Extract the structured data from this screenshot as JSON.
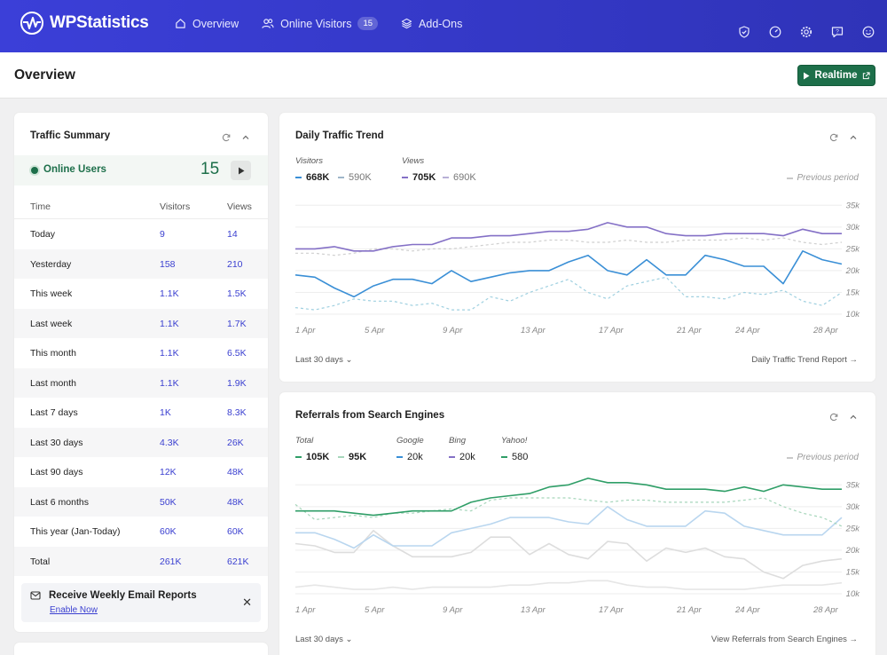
{
  "app": {
    "brand": "WPStatistics",
    "nav": [
      {
        "label": "Overview",
        "icon": "home-icon"
      },
      {
        "label": "Online Visitors",
        "icon": "users-icon",
        "badge": "15"
      },
      {
        "label": "Add-Ons",
        "icon": "layers-icon"
      }
    ],
    "top_icons": [
      "shield-check-icon",
      "gauge-icon",
      "gear-icon",
      "help-chat-icon",
      "smiley-icon"
    ]
  },
  "page": {
    "title": "Overview",
    "realtime_label": "Realtime"
  },
  "traffic_summary": {
    "title": "Traffic Summary",
    "online_label": "Online Users",
    "online_count": "15",
    "headers": {
      "time": "Time",
      "visitors": "Visitors",
      "views": "Views"
    },
    "rows": [
      {
        "label": "Today",
        "visitors": "9",
        "views": "14"
      },
      {
        "label": "Yesterday",
        "visitors": "158",
        "views": "210"
      },
      {
        "label": "This week",
        "visitors": "1.1K",
        "views": "1.5K"
      },
      {
        "label": "Last week",
        "visitors": "1.1K",
        "views": "1.7K"
      },
      {
        "label": "This month",
        "visitors": "1.1K",
        "views": "6.5K"
      },
      {
        "label": "Last month",
        "visitors": "1.1K",
        "views": "1.9K"
      },
      {
        "label": "Last 7 days",
        "visitors": "1K",
        "views": "8.3K"
      },
      {
        "label": "Last 30 days",
        "visitors": "4.3K",
        "views": "26K"
      },
      {
        "label": "Last 90 days",
        "visitors": "12K",
        "views": "48K"
      },
      {
        "label": "Last 6 months",
        "visitors": "50K",
        "views": "48K"
      },
      {
        "label": "This year (Jan-Today)",
        "visitors": "60K",
        "views": "60K"
      },
      {
        "label": "Total",
        "visitors": "261K",
        "views": "621K"
      }
    ],
    "email_text": "Receive Weekly Email Reports",
    "email_link": "Enable Now"
  },
  "daily_trend": {
    "title": "Daily Traffic Trend",
    "legend": {
      "visitors_title": "Visitors",
      "visitors_value": "668K",
      "visitors_prev": "590K",
      "views_title": "Views",
      "views_value": "705K",
      "views_prev": "690K"
    },
    "previous_period": "Previous period",
    "range_label": "Last 30 days",
    "report_link": "Daily Traffic Trend Report"
  },
  "referrals": {
    "title": "Referrals from Search Engines",
    "legend": {
      "total_title": "Total",
      "total_value": "105K",
      "total_prev": "95K",
      "google_title": "Google",
      "google_value": "20k",
      "bing_title": "Bing",
      "bing_value": "20k",
      "yahoo_title": "Yahoo!",
      "yahoo_value": "580"
    },
    "previous_period": "Previous period",
    "range_label": "Last 30 days",
    "report_link": "View Referrals from Search Engines"
  },
  "colors": {
    "brand": "#3b3fd8",
    "visitors": "#3a8fd6",
    "views": "#8470c6",
    "google": "#3a8fd6",
    "bing": "#8470c6",
    "yahoo": "#2f9e67",
    "link": "#3a3fd0",
    "realtime": "#1d6f4a"
  },
  "chart_data": [
    {
      "type": "line",
      "title": "Daily Traffic Trend",
      "x": [
        "1 Apr",
        "2 Apr",
        "3 Apr",
        "4 Apr",
        "5 Apr",
        "6 Apr",
        "7 Apr",
        "8 Apr",
        "9 Apr",
        "10 Apr",
        "11 Apr",
        "12 Apr",
        "13 Apr",
        "14 Apr",
        "15 Apr",
        "16 Apr",
        "17 Apr",
        "18 Apr",
        "19 Apr",
        "20 Apr",
        "21 Apr",
        "22 Apr",
        "23 Apr",
        "24 Apr",
        "25 Apr",
        "26 Apr",
        "27 Apr",
        "28 Apr",
        "29 Apr"
      ],
      "x_ticks": [
        "1 Apr",
        "5 Apr",
        "9 Apr",
        "13 Apr",
        "17 Apr",
        "21 Apr",
        "24 Apr",
        "28 Apr"
      ],
      "y_ticks": [
        "10k",
        "15k",
        "20k",
        "25k",
        "30k",
        "35k"
      ],
      "ylim": [
        10000,
        37500
      ],
      "series": [
        {
          "name": "Visitors",
          "color": "#3a8fd6",
          "style": "solid",
          "values": [
            19000,
            18500,
            16000,
            14000,
            16500,
            18000,
            18000,
            17000,
            20000,
            17500,
            18500,
            19500,
            20000,
            20000,
            22000,
            23500,
            20000,
            19000,
            22500,
            19000,
            19000,
            23500,
            22500,
            21000,
            21000,
            17000,
            24500,
            22500,
            21500
          ]
        },
        {
          "name": "Views",
          "color": "#8470c6",
          "style": "solid",
          "values": [
            25000,
            25000,
            25500,
            24500,
            24500,
            25500,
            26000,
            26000,
            27500,
            27500,
            28000,
            28000,
            28500,
            29000,
            29000,
            29500,
            31000,
            30000,
            30000,
            28500,
            28000,
            28000,
            28500,
            28500,
            28500,
            28000,
            29500,
            28500,
            28500
          ]
        },
        {
          "name": "Visitors previous period",
          "color": "#9fd0e0",
          "style": "dashed",
          "values": [
            11500,
            11000,
            12000,
            13500,
            13000,
            13000,
            12000,
            12500,
            11000,
            11000,
            14000,
            13000,
            15000,
            16500,
            18000,
            15000,
            13500,
            16500,
            17500,
            18500,
            14000,
            14000,
            13500,
            15000,
            14500,
            15500,
            13000,
            12000,
            15000
          ]
        },
        {
          "name": "Views previous period",
          "color": "#cfcfcf",
          "style": "dashed",
          "values": [
            24000,
            24000,
            23500,
            24000,
            25000,
            25000,
            24500,
            25000,
            25000,
            25500,
            26000,
            26500,
            26500,
            27000,
            27000,
            26500,
            26500,
            27000,
            26500,
            26500,
            27000,
            27000,
            27000,
            27500,
            27000,
            27500,
            26500,
            26000,
            26500
          ]
        }
      ]
    },
    {
      "type": "line",
      "title": "Referrals from Search Engines",
      "x": [
        "1 Apr",
        "2 Apr",
        "3 Apr",
        "4 Apr",
        "5 Apr",
        "6 Apr",
        "7 Apr",
        "8 Apr",
        "9 Apr",
        "10 Apr",
        "11 Apr",
        "12 Apr",
        "13 Apr",
        "14 Apr",
        "15 Apr",
        "16 Apr",
        "17 Apr",
        "18 Apr",
        "19 Apr",
        "20 Apr",
        "21 Apr",
        "22 Apr",
        "23 Apr",
        "24 Apr",
        "25 Apr",
        "26 Apr",
        "27 Apr",
        "28 Apr",
        "29 Apr"
      ],
      "x_ticks": [
        "1 Apr",
        "5 Apr",
        "9 Apr",
        "13 Apr",
        "17 Apr",
        "21 Apr",
        "24 Apr",
        "28 Apr"
      ],
      "y_ticks": [
        "10k",
        "15k",
        "20k",
        "25k",
        "30k",
        "35k"
      ],
      "ylim": [
        10000,
        37500
      ],
      "series": [
        {
          "name": "Total",
          "color": "#2f9e67",
          "style": "solid",
          "values": [
            29000,
            29000,
            29000,
            28500,
            28000,
            28500,
            29000,
            29000,
            29000,
            31000,
            32000,
            32500,
            33000,
            34500,
            35000,
            36500,
            35500,
            35500,
            35000,
            34000,
            34000,
            34000,
            33500,
            34500,
            33500,
            35000,
            34500,
            34000,
            34000
          ]
        },
        {
          "name": "Total previous period",
          "color": "#a6d6bb",
          "style": "dashed",
          "values": [
            30500,
            27000,
            27500,
            28000,
            27500,
            28500,
            28500,
            29000,
            29500,
            29000,
            31500,
            32000,
            32000,
            32000,
            32000,
            31500,
            31000,
            31500,
            31500,
            31000,
            31000,
            31000,
            31000,
            31500,
            32000,
            30000,
            28500,
            27500,
            25500
          ]
        },
        {
          "name": "Google",
          "color": "#b9d6ef",
          "style": "solid",
          "values": [
            24000,
            24000,
            22500,
            20500,
            23500,
            21000,
            21000,
            21000,
            24000,
            25000,
            26000,
            27500,
            27500,
            27500,
            26500,
            26000,
            30000,
            27000,
            25500,
            25500,
            25500,
            29000,
            28500,
            25500,
            24500,
            23500,
            23500,
            23500,
            27500
          ]
        },
        {
          "name": "Bing",
          "color": "#dddddd",
          "style": "solid",
          "values": [
            21500,
            21000,
            19500,
            19500,
            24500,
            21000,
            18500,
            18500,
            18500,
            19500,
            23000,
            23000,
            19000,
            21500,
            19000,
            18000,
            22000,
            21500,
            17500,
            20500,
            19500,
            20500,
            18500,
            18000,
            15000,
            13500,
            16500,
            17500,
            18000
          ]
        },
        {
          "name": "Yahoo!",
          "color": "#e6e6e6",
          "style": "solid",
          "values": [
            11500,
            12000,
            11500,
            11000,
            11000,
            11500,
            11000,
            11500,
            11500,
            11500,
            11500,
            12000,
            12000,
            12500,
            12500,
            13000,
            13000,
            12000,
            11500,
            11500,
            11000,
            11000,
            11000,
            11000,
            11500,
            12000,
            12000,
            12000,
            12500
          ]
        }
      ]
    }
  ]
}
